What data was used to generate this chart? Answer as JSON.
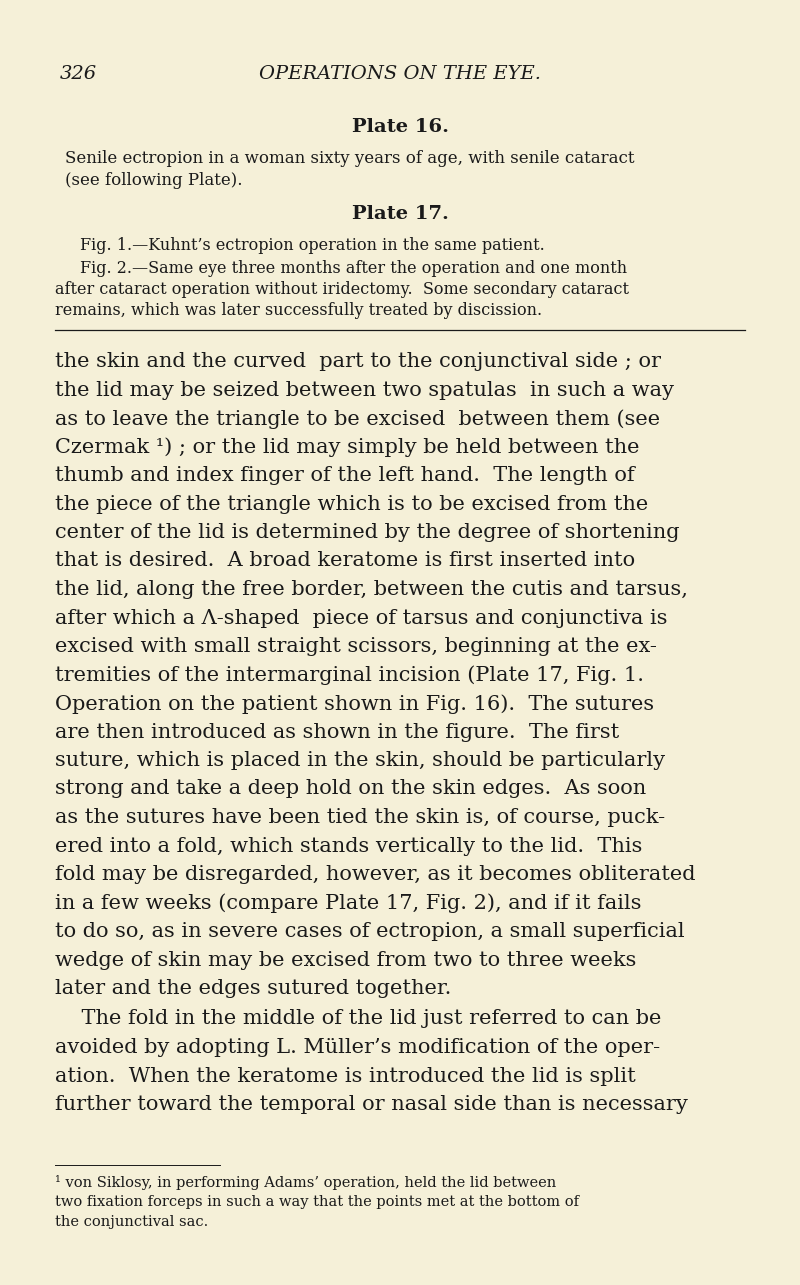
{
  "background_color": "#f5f0d8",
  "text_color": "#1a1a1a",
  "page_number": "326",
  "header_title": "OPERATIONS ON THE EYE.",
  "plate16_title": "Plate 16.",
  "plate16_body": "Senile ectropion in a woman sixty years of age, with senile cataract\n(see following Plate).",
  "plate17_title": "Plate 17.",
  "fig1_line": "Fig. 1.—Kuhnt’s ectropion operation in the same patient.",
  "fig2_lines": [
    "Fig. 2.—Same eye three months after the operation and one month",
    "after cataract operation without iridectomy.  Some secondary cataract",
    "remains, which was later successfully treated by discission."
  ],
  "main_para_lines": [
    "the skin and the curved  part to the conjunctival side ; or",
    "the lid may be seized between two spatulas  in such a way",
    "as to leave the triangle to be excised  between them (see",
    "Czermak ¹) ; or the lid may simply be held between the",
    "thumb and index finger of the left hand.  The length of",
    "the piece of the triangle which is to be excised from the",
    "center of the lid is determined by the degree of shortening",
    "that is desired.  A broad keratome is first inserted into",
    "the lid, along the free border, between the cutis and tarsus,",
    "after which a Λ-shaped  piece of tarsus and conjunctiva is",
    "excised with small straight scissors, beginning at the ex-",
    "tremities of the intermarginal incision (Plate 17, Fig. 1.",
    "Operation on the patient shown in Fig. 16).  The sutures",
    "are then introduced as shown in the figure.  The first",
    "suture, which is placed in the skin, should be particularly",
    "strong and take a deep hold on the skin edges.  As soon",
    "as the sutures have been tied the skin is, of course, puck-",
    "ered into a fold, which stands vertically to the lid.  This",
    "fold may be disregarded, however, as it becomes obliterated",
    "in a few weeks (compare Plate 17, Fig. 2), and if it fails",
    "to do so, as in severe cases of ectropion, a small superficial",
    "wedge of skin may be excised from two to three weeks",
    "later and the edges sutured together."
  ],
  "para2_lines": [
    "    The fold in the middle of the lid just referred to can be",
    "avoided by adopting L. Müller’s modification of the oper-",
    "ation.  When the keratome is introduced the lid is split",
    "further toward the temporal or nasal side than is necessary"
  ],
  "footnote_lines": [
    "¹ von Siklosy, in performing Adams’ operation, held the lid between",
    "two fixation forceps in such a way that the points met at the bottom of",
    "the conjunctival sac."
  ]
}
